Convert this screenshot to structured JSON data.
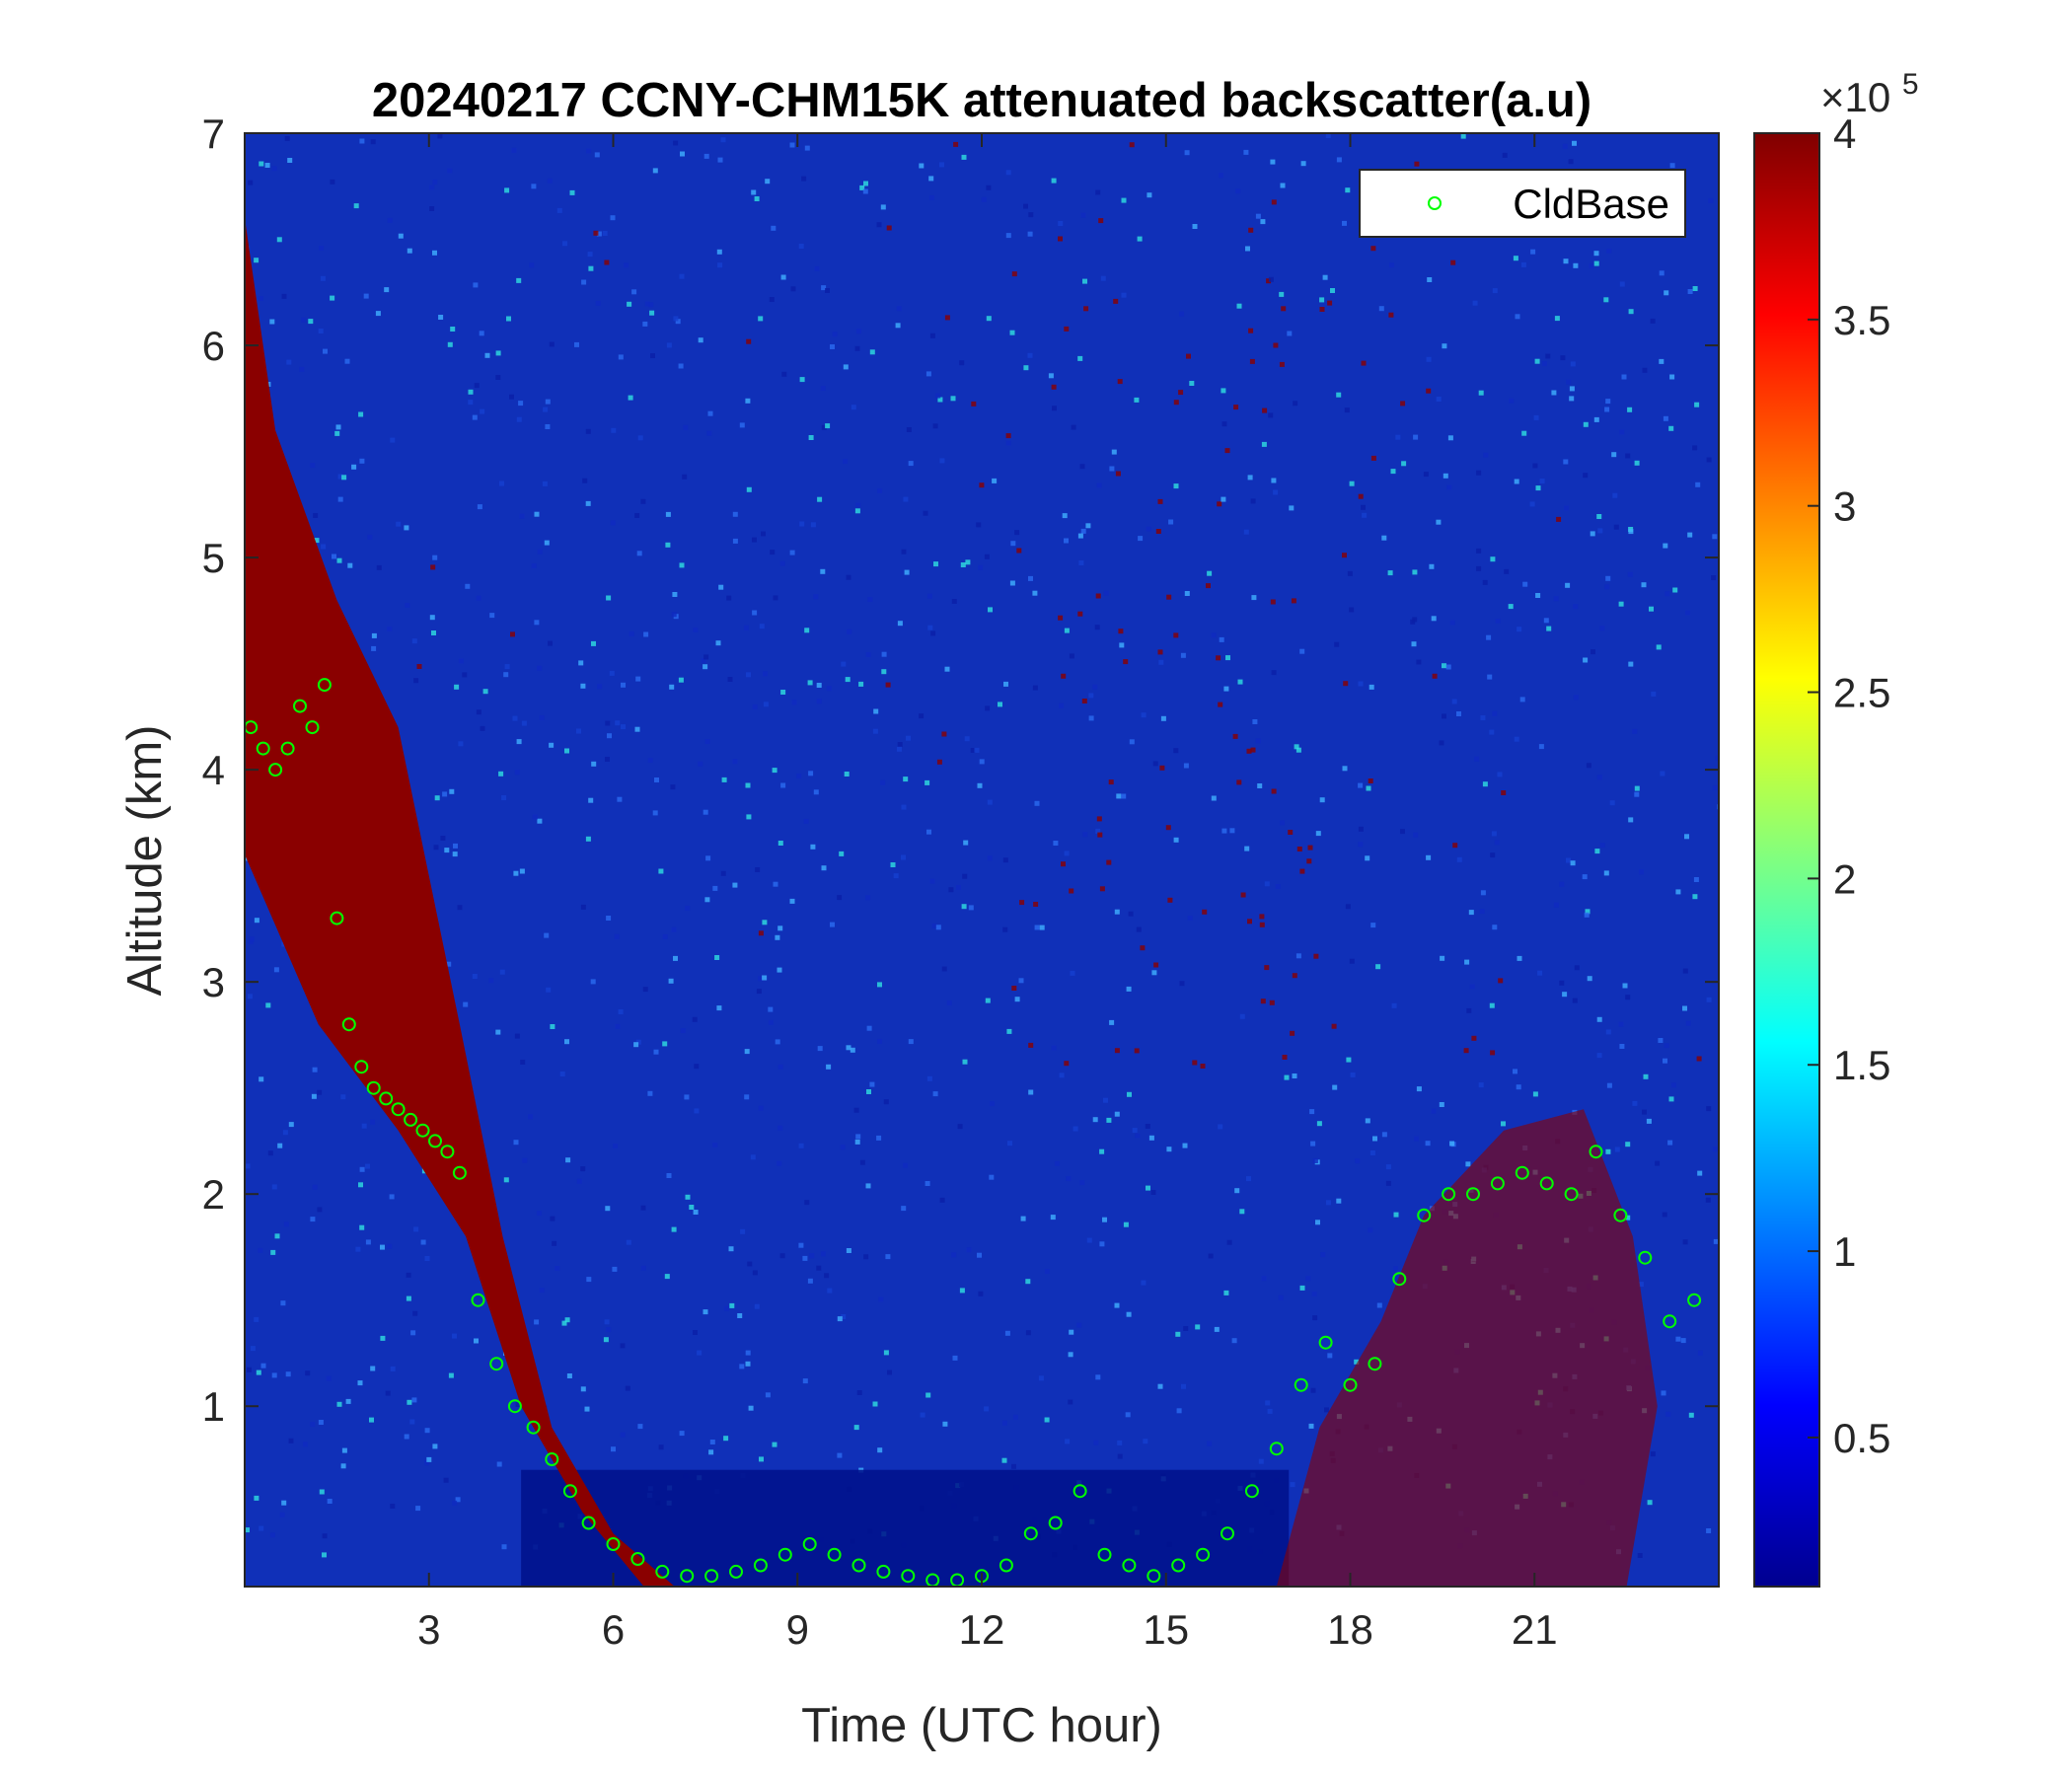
{
  "chart_data": {
    "type": "heatmap",
    "title": "20240217 CCNY-CHM15K attenuated backscatter(a.u)",
    "xlabel": "Time (UTC hour)",
    "ylabel": "Altitude (km)",
    "xlim": [
      0,
      24
    ],
    "ylim": [
      0.15,
      7
    ],
    "xticks": [
      3,
      6,
      9,
      12,
      15,
      18,
      21
    ],
    "yticks": [
      1,
      2,
      3,
      4,
      5,
      6,
      7
    ],
    "colorbar": {
      "colormap": "jet",
      "range": [
        0.1,
        4
      ],
      "ticks": [
        0.5,
        1,
        1.5,
        2,
        2.5,
        3,
        3.5,
        4
      ],
      "exponent_label": "×10",
      "exponent": "5"
    },
    "legend": {
      "position": "top-right",
      "entries": [
        "CldBase"
      ]
    },
    "series": [
      {
        "name": "CldBase",
        "marker": "circle",
        "color": "#00ff00",
        "x": [
          0.1,
          0.3,
          0.5,
          0.7,
          0.9,
          1.1,
          1.3,
          1.5,
          1.7,
          1.9,
          2.1,
          2.3,
          2.5,
          2.7,
          2.9,
          3.1,
          3.3,
          3.5,
          3.8,
          4.1,
          4.4,
          4.7,
          5.0,
          5.3,
          5.6,
          6.0,
          6.4,
          6.8,
          7.2,
          7.6,
          8.0,
          8.4,
          8.8,
          9.2,
          9.6,
          10.0,
          10.4,
          10.8,
          11.2,
          11.6,
          12.0,
          12.4,
          12.8,
          13.2,
          13.6,
          14.0,
          14.4,
          14.8,
          15.2,
          15.6,
          16.0,
          16.4,
          16.8,
          17.2,
          17.6,
          18.0,
          18.4,
          18.8,
          19.2,
          19.6,
          20.0,
          20.4,
          20.8,
          21.2,
          21.6,
          22.0,
          22.4,
          22.8,
          23.2,
          23.6
        ],
        "y": [
          4.2,
          4.1,
          4.0,
          4.1,
          4.3,
          4.2,
          4.4,
          3.3,
          2.8,
          2.6,
          2.5,
          2.45,
          2.4,
          2.35,
          2.3,
          2.25,
          2.2,
          2.1,
          1.5,
          1.2,
          1.0,
          0.9,
          0.75,
          0.6,
          0.45,
          0.35,
          0.28,
          0.22,
          0.2,
          0.2,
          0.22,
          0.25,
          0.3,
          0.35,
          0.3,
          0.25,
          0.22,
          0.2,
          0.18,
          0.18,
          0.2,
          0.25,
          0.4,
          0.45,
          0.6,
          0.3,
          0.25,
          0.2,
          0.25,
          0.3,
          0.4,
          0.6,
          0.8,
          1.1,
          1.3,
          1.1,
          1.2,
          1.6,
          1.9,
          2.0,
          2.0,
          2.05,
          2.1,
          2.05,
          2.0,
          2.2,
          1.9,
          1.7,
          1.4,
          1.5
        ]
      }
    ]
  }
}
